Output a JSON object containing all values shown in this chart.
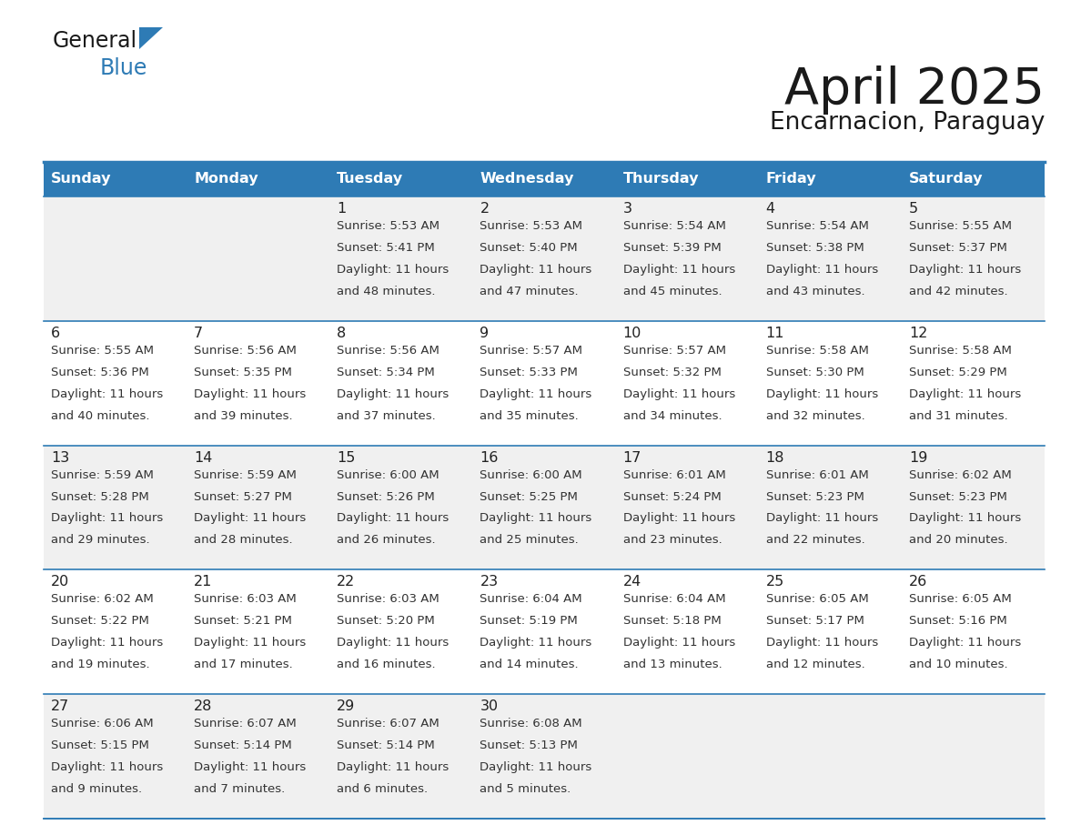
{
  "title": "April 2025",
  "subtitle": "Encarnacion, Paraguay",
  "days_of_week": [
    "Sunday",
    "Monday",
    "Tuesday",
    "Wednesday",
    "Thursday",
    "Friday",
    "Saturday"
  ],
  "header_bg": "#2E7BB5",
  "header_text_color": "#FFFFFF",
  "row_bg_even": "#F0F0F0",
  "row_bg_odd": "#FFFFFF",
  "cell_border_color": "#2E7BB5",
  "title_color": "#1a1a1a",
  "subtitle_color": "#1a1a1a",
  "day_number_color": "#222222",
  "cell_text_color": "#333333",
  "logo_general_color": "#1a1a1a",
  "logo_blue_color": "#2E7BB5",
  "logo_triangle_color": "#2E7BB5",
  "calendar_data": [
    [
      null,
      null,
      {
        "day": 1,
        "sunrise": "5:53 AM",
        "sunset": "5:41 PM",
        "daylight_line1": "11 hours",
        "daylight_line2": "and 48 minutes."
      },
      {
        "day": 2,
        "sunrise": "5:53 AM",
        "sunset": "5:40 PM",
        "daylight_line1": "11 hours",
        "daylight_line2": "and 47 minutes."
      },
      {
        "day": 3,
        "sunrise": "5:54 AM",
        "sunset": "5:39 PM",
        "daylight_line1": "11 hours",
        "daylight_line2": "and 45 minutes."
      },
      {
        "day": 4,
        "sunrise": "5:54 AM",
        "sunset": "5:38 PM",
        "daylight_line1": "11 hours",
        "daylight_line2": "and 43 minutes."
      },
      {
        "day": 5,
        "sunrise": "5:55 AM",
        "sunset": "5:37 PM",
        "daylight_line1": "11 hours",
        "daylight_line2": "and 42 minutes."
      }
    ],
    [
      {
        "day": 6,
        "sunrise": "5:55 AM",
        "sunset": "5:36 PM",
        "daylight_line1": "11 hours",
        "daylight_line2": "and 40 minutes."
      },
      {
        "day": 7,
        "sunrise": "5:56 AM",
        "sunset": "5:35 PM",
        "daylight_line1": "11 hours",
        "daylight_line2": "and 39 minutes."
      },
      {
        "day": 8,
        "sunrise": "5:56 AM",
        "sunset": "5:34 PM",
        "daylight_line1": "11 hours",
        "daylight_line2": "and 37 minutes."
      },
      {
        "day": 9,
        "sunrise": "5:57 AM",
        "sunset": "5:33 PM",
        "daylight_line1": "11 hours",
        "daylight_line2": "and 35 minutes."
      },
      {
        "day": 10,
        "sunrise": "5:57 AM",
        "sunset": "5:32 PM",
        "daylight_line1": "11 hours",
        "daylight_line2": "and 34 minutes."
      },
      {
        "day": 11,
        "sunrise": "5:58 AM",
        "sunset": "5:30 PM",
        "daylight_line1": "11 hours",
        "daylight_line2": "and 32 minutes."
      },
      {
        "day": 12,
        "sunrise": "5:58 AM",
        "sunset": "5:29 PM",
        "daylight_line1": "11 hours",
        "daylight_line2": "and 31 minutes."
      }
    ],
    [
      {
        "day": 13,
        "sunrise": "5:59 AM",
        "sunset": "5:28 PM",
        "daylight_line1": "11 hours",
        "daylight_line2": "and 29 minutes."
      },
      {
        "day": 14,
        "sunrise": "5:59 AM",
        "sunset": "5:27 PM",
        "daylight_line1": "11 hours",
        "daylight_line2": "and 28 minutes."
      },
      {
        "day": 15,
        "sunrise": "6:00 AM",
        "sunset": "5:26 PM",
        "daylight_line1": "11 hours",
        "daylight_line2": "and 26 minutes."
      },
      {
        "day": 16,
        "sunrise": "6:00 AM",
        "sunset": "5:25 PM",
        "daylight_line1": "11 hours",
        "daylight_line2": "and 25 minutes."
      },
      {
        "day": 17,
        "sunrise": "6:01 AM",
        "sunset": "5:24 PM",
        "daylight_line1": "11 hours",
        "daylight_line2": "and 23 minutes."
      },
      {
        "day": 18,
        "sunrise": "6:01 AM",
        "sunset": "5:23 PM",
        "daylight_line1": "11 hours",
        "daylight_line2": "and 22 minutes."
      },
      {
        "day": 19,
        "sunrise": "6:02 AM",
        "sunset": "5:23 PM",
        "daylight_line1": "11 hours",
        "daylight_line2": "and 20 minutes."
      }
    ],
    [
      {
        "day": 20,
        "sunrise": "6:02 AM",
        "sunset": "5:22 PM",
        "daylight_line1": "11 hours",
        "daylight_line2": "and 19 minutes."
      },
      {
        "day": 21,
        "sunrise": "6:03 AM",
        "sunset": "5:21 PM",
        "daylight_line1": "11 hours",
        "daylight_line2": "and 17 minutes."
      },
      {
        "day": 22,
        "sunrise": "6:03 AM",
        "sunset": "5:20 PM",
        "daylight_line1": "11 hours",
        "daylight_line2": "and 16 minutes."
      },
      {
        "day": 23,
        "sunrise": "6:04 AM",
        "sunset": "5:19 PM",
        "daylight_line1": "11 hours",
        "daylight_line2": "and 14 minutes."
      },
      {
        "day": 24,
        "sunrise": "6:04 AM",
        "sunset": "5:18 PM",
        "daylight_line1": "11 hours",
        "daylight_line2": "and 13 minutes."
      },
      {
        "day": 25,
        "sunrise": "6:05 AM",
        "sunset": "5:17 PM",
        "daylight_line1": "11 hours",
        "daylight_line2": "and 12 minutes."
      },
      {
        "day": 26,
        "sunrise": "6:05 AM",
        "sunset": "5:16 PM",
        "daylight_line1": "11 hours",
        "daylight_line2": "and 10 minutes."
      }
    ],
    [
      {
        "day": 27,
        "sunrise": "6:06 AM",
        "sunset": "5:15 PM",
        "daylight_line1": "11 hours",
        "daylight_line2": "and 9 minutes."
      },
      {
        "day": 28,
        "sunrise": "6:07 AM",
        "sunset": "5:14 PM",
        "daylight_line1": "11 hours",
        "daylight_line2": "and 7 minutes."
      },
      {
        "day": 29,
        "sunrise": "6:07 AM",
        "sunset": "5:14 PM",
        "daylight_line1": "11 hours",
        "daylight_line2": "and 6 minutes."
      },
      {
        "day": 30,
        "sunrise": "6:08 AM",
        "sunset": "5:13 PM",
        "daylight_line1": "11 hours",
        "daylight_line2": "and 5 minutes."
      },
      null,
      null,
      null
    ]
  ]
}
